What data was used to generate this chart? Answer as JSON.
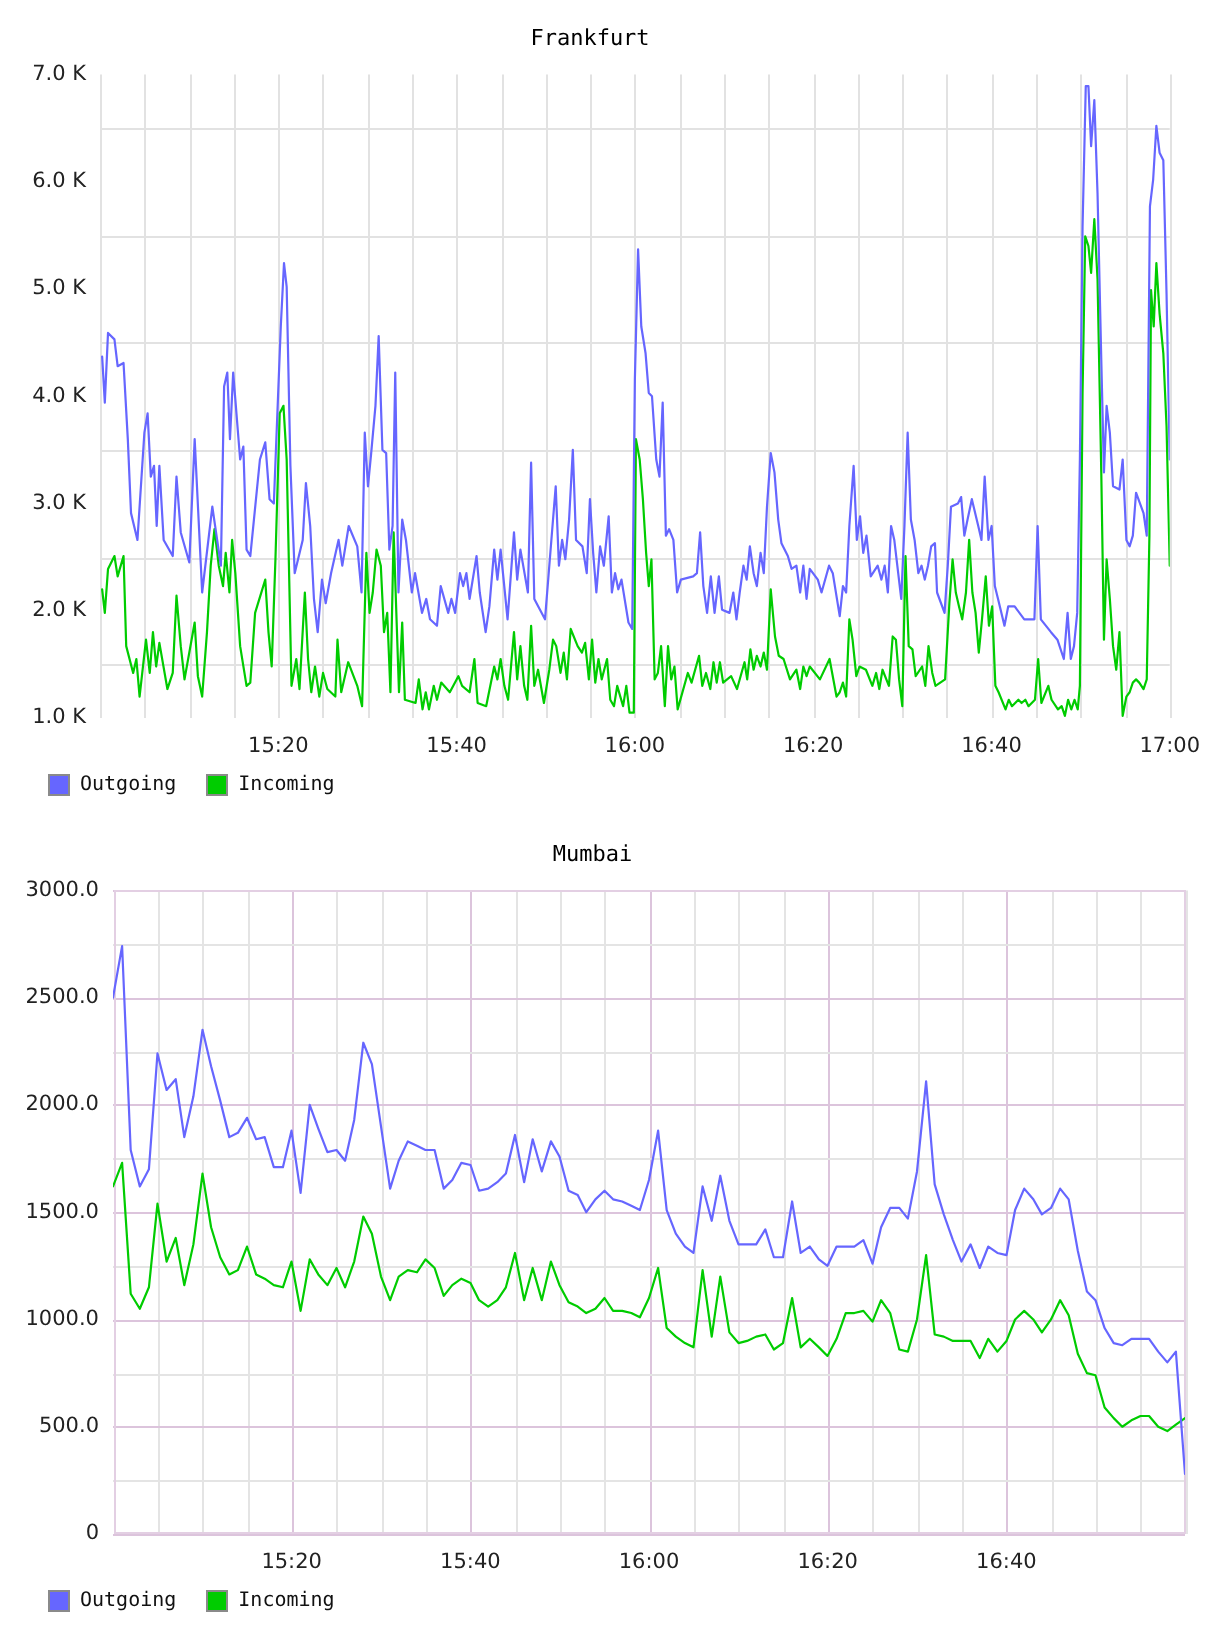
{
  "chart_data": [
    {
      "type": "line",
      "title": "Frankfurt",
      "xlim": [
        15,
        17
      ],
      "xticks": [
        {
          "value": 15,
          "label": null
        },
        {
          "value": 15.0833,
          "label": null
        },
        {
          "value": 15.1667,
          "label": null
        },
        {
          "value": 15.25,
          "label": null
        },
        {
          "value": 15.3333,
          "label": "15:20"
        },
        {
          "value": 15.4167,
          "label": null
        },
        {
          "value": 15.5,
          "label": null
        },
        {
          "value": 15.5833,
          "label": null
        },
        {
          "value": 15.6667,
          "label": "15:40"
        },
        {
          "value": 15.75,
          "label": null
        },
        {
          "value": 15.8333,
          "label": null
        },
        {
          "value": 15.9167,
          "label": null
        },
        {
          "value": 16,
          "label": "16:00"
        },
        {
          "value": 16.0833,
          "label": null
        },
        {
          "value": 16.1667,
          "label": null
        },
        {
          "value": 16.25,
          "label": null
        },
        {
          "value": 16.3333,
          "label": "16:20"
        },
        {
          "value": 16.4167,
          "label": null
        },
        {
          "value": 16.5,
          "label": null
        },
        {
          "value": 16.5833,
          "label": null
        },
        {
          "value": 16.6667,
          "label": "16:40"
        },
        {
          "value": 16.75,
          "label": null
        },
        {
          "value": 16.8333,
          "label": null
        },
        {
          "value": 16.9167,
          "label": null
        },
        {
          "value": 17,
          "label": "17:00"
        }
      ],
      "ylim": [
        1,
        7
      ],
      "yticks": [
        {
          "value": 1,
          "label": "1.0 K"
        },
        {
          "value": 1.5,
          "label": null
        },
        {
          "value": 2,
          "label": "2.0 K"
        },
        {
          "value": 2.5,
          "label": null
        },
        {
          "value": 3,
          "label": "3.0 K"
        },
        {
          "value": 3.5,
          "label": null
        },
        {
          "value": 4,
          "label": "4.0 K"
        },
        {
          "value": 4.5,
          "label": null
        },
        {
          "value": 5,
          "label": "5.0 K"
        },
        {
          "value": 5.5,
          "label": null
        },
        {
          "value": 6,
          "label": "6.0 K"
        },
        {
          "value": 6.5,
          "label": null
        },
        {
          "value": 7,
          "label": "7.0 K"
        }
      ],
      "grid": true,
      "legend": "bottom left",
      "series": [
        {
          "name": "Outgoing",
          "color": "#6666ff",
          "x": [
            15.004,
            15.009,
            15.015,
            15.027,
            15.033,
            15.044,
            15.052,
            15.058,
            15.07,
            15.083,
            15.089,
            15.095,
            15.101,
            15.106,
            15.111,
            15.119,
            15.136,
            15.143,
            15.151,
            15.167,
            15.177,
            15.191,
            15.21,
            15.226,
            15.232,
            15.238,
            15.243,
            15.249,
            15.262,
            15.268,
            15.274,
            15.281,
            15.299,
            15.309,
            15.317,
            15.325,
            15.338,
            15.344,
            15.349,
            15.356,
            15.364,
            15.379,
            15.385,
            15.393,
            15.4,
            15.407,
            15.415,
            15.422,
            15.432,
            15.446,
            15.453,
            15.465,
            15.481,
            15.489,
            15.495,
            15.501,
            15.507,
            15.515,
            15.521,
            15.528,
            15.535,
            15.541,
            15.547,
            15.552,
            15.558,
            15.565,
            15.572,
            15.583,
            15.589,
            15.602,
            15.61,
            15.617,
            15.63,
            15.637,
            15.651,
            15.657,
            15.664,
            15.673,
            15.679,
            15.685,
            15.691,
            15.704,
            15.71,
            15.721,
            15.728,
            15.737,
            15.743,
            15.749,
            15.762,
            15.774,
            15.78,
            15.786,
            15.8,
            15.806,
            15.812,
            15.832,
            15.846,
            15.852,
            15.858,
            15.864,
            15.87,
            15.877,
            15.884,
            15.89,
            15.902,
            15.91,
            15.916,
            15.922,
            15.928,
            15.935,
            15.942,
            15.951,
            15.957,
            15.963,
            15.969,
            15.975,
            15.988,
            15.995,
            16.0,
            16.006,
            16.012,
            16.02,
            16.026,
            16.032,
            16.04,
            16.046,
            16.052,
            16.058,
            16.064,
            16.072,
            16.079,
            16.086,
            16.109,
            16.116,
            16.122,
            16.128,
            16.135,
            16.142,
            16.149,
            16.157,
            16.163,
            16.177,
            16.184,
            16.19,
            16.196,
            16.203,
            16.209,
            16.215,
            16.222,
            16.228,
            16.235,
            16.241,
            16.247,
            16.254,
            16.261,
            16.268,
            16.274,
            16.286,
            16.293,
            16.302,
            16.309,
            16.315,
            16.321,
            16.327,
            16.342,
            16.349,
            16.363,
            16.37,
            16.383,
            16.389,
            16.395,
            16.401,
            16.409,
            16.415,
            16.421,
            16.427,
            16.433,
            16.441,
            16.454,
            16.461,
            16.467,
            16.473,
            16.479,
            16.485,
            16.498,
            16.504,
            16.51,
            16.516,
            16.523,
            16.53,
            16.536,
            16.542,
            16.548,
            16.554,
            16.561,
            16.565,
            16.579,
            16.585,
            16.591,
            16.604,
            16.61,
            16.616,
            16.622,
            16.63,
            16.642,
            16.648,
            16.654,
            16.661,
            16.667,
            16.673,
            16.679,
            16.691,
            16.698,
            16.71,
            16.728,
            16.747,
            16.753,
            16.759,
            16.778,
            16.79,
            16.802,
            16.809,
            16.815,
            16.821,
            16.827,
            16.832,
            16.837,
            16.843,
            16.848,
            16.853,
            16.859,
            16.865,
            16.872,
            16.877,
            16.882,
            16.888,
            16.894,
            16.906,
            16.912,
            16.919,
            16.925,
            16.931,
            16.937,
            16.951,
            16.957,
            16.963,
            16.969,
            16.975,
            16.981,
            16.988,
            16.994,
            17.0
          ],
          "values": [
            4.37,
            3.94,
            4.59,
            4.53,
            4.28,
            4.31,
            3.6,
            2.91,
            2.66,
            3.66,
            3.84,
            3.25,
            3.35,
            2.79,
            3.35,
            2.66,
            2.51,
            3.25,
            2.73,
            2.45,
            3.6,
            2.17,
            2.97,
            2.42,
            4.09,
            4.22,
            3.6,
            4.22,
            3.41,
            3.53,
            2.57,
            2.51,
            3.41,
            3.57,
            3.04,
            3.0,
            4.65,
            5.24,
            5.02,
            3.35,
            2.35,
            2.66,
            3.19,
            2.79,
            2.11,
            1.8,
            2.29,
            2.07,
            2.35,
            2.66,
            2.42,
            2.79,
            2.6,
            2.17,
            3.66,
            3.16,
            3.47,
            3.91,
            4.56,
            3.5,
            3.47,
            2.57,
            2.79,
            4.22,
            2.17,
            2.85,
            2.66,
            2.17,
            2.35,
            1.98,
            2.11,
            1.92,
            1.86,
            2.23,
            1.98,
            2.11,
            1.98,
            2.35,
            2.23,
            2.35,
            2.11,
            2.51,
            2.17,
            1.8,
            2.04,
            2.57,
            2.29,
            2.57,
            1.92,
            2.73,
            2.29,
            2.57,
            2.17,
            3.38,
            2.11,
            1.92,
            2.79,
            3.16,
            2.42,
            2.66,
            2.48,
            2.85,
            3.5,
            2.66,
            2.6,
            2.35,
            3.04,
            2.54,
            2.17,
            2.6,
            2.42,
            2.88,
            2.17,
            2.35,
            2.2,
            2.29,
            1.89,
            1.83,
            4.16,
            5.37,
            4.65,
            4.4,
            4.03,
            4.0,
            3.41,
            3.25,
            3.94,
            2.7,
            2.76,
            2.66,
            2.17,
            2.29,
            2.32,
            2.35,
            2.73,
            2.23,
            1.98,
            2.32,
            1.98,
            2.32,
            2.01,
            1.98,
            2.17,
            1.92,
            2.17,
            2.42,
            2.29,
            2.6,
            2.35,
            2.23,
            2.54,
            2.35,
            2.97,
            3.47,
            3.29,
            2.85,
            2.63,
            2.51,
            2.39,
            2.42,
            2.17,
            2.42,
            2.11,
            2.39,
            2.29,
            2.17,
            2.42,
            2.35,
            1.95,
            2.23,
            2.17,
            2.79,
            3.35,
            2.66,
            2.88,
            2.54,
            2.7,
            2.32,
            2.42,
            2.29,
            2.42,
            2.17,
            2.79,
            2.66,
            2.11,
            2.79,
            3.66,
            2.85,
            2.66,
            2.35,
            2.42,
            2.29,
            2.42,
            2.6,
            2.63,
            2.17,
            1.98,
            2.42,
            2.97,
            3.0,
            3.06,
            2.7,
            2.85,
            3.04,
            2.79,
            2.66,
            3.25,
            2.66,
            2.79,
            2.23,
            2.11,
            1.86,
            2.04,
            2.04,
            1.92,
            1.92,
            2.79,
            1.92,
            1.8,
            1.73,
            1.55,
            1.98,
            1.55,
            1.67,
            1.98,
            3.41,
            5.58,
            6.89,
            6.89,
            6.33,
            6.76,
            5.89,
            4.34,
            3.29,
            3.91,
            3.66,
            3.16,
            3.13,
            3.41,
            2.66,
            2.6,
            2.7,
            3.1,
            2.91,
            2.7,
            5.77,
            6.02,
            6.52,
            6.27,
            6.2,
            4.96,
            3.41
          ]
        },
        {
          "name": "Incoming",
          "color": "#00cc00",
          "x": [
            15.004,
            15.009,
            15.015,
            15.027,
            15.033,
            15.044,
            15.049,
            15.062,
            15.068,
            15.074,
            15.086,
            15.093,
            15.099,
            15.105,
            15.111,
            15.126,
            15.136,
            15.143,
            15.151,
            15.158,
            15.177,
            15.183,
            15.191,
            15.2,
            15.207,
            15.214,
            15.222,
            15.23,
            15.235,
            15.242,
            15.247,
            15.253,
            15.262,
            15.274,
            15.281,
            15.29,
            15.309,
            15.315,
            15.321,
            15.328,
            15.336,
            15.343,
            15.349,
            15.358,
            15.367,
            15.373,
            15.383,
            15.389,
            15.395,
            15.402,
            15.41,
            15.417,
            15.425,
            15.44,
            15.444,
            15.451,
            15.464,
            15.481,
            15.49,
            15.498,
            15.504,
            15.51,
            15.517,
            15.525,
            15.531,
            15.537,
            15.543,
            15.549,
            15.559,
            15.565,
            15.57,
            15.59,
            15.596,
            15.603,
            15.609,
            15.615,
            15.624,
            15.63,
            15.638,
            15.654,
            15.67,
            15.677,
            15.691,
            15.7,
            15.706,
            15.722,
            15.737,
            15.743,
            15.749,
            15.756,
            15.763,
            15.774,
            15.78,
            15.786,
            15.793,
            15.799,
            15.806,
            15.812,
            15.819,
            15.83,
            15.84,
            15.847,
            15.853,
            15.861,
            15.867,
            15.873,
            15.88,
            15.893,
            15.901,
            15.907,
            15.914,
            15.92,
            15.926,
            15.932,
            15.938,
            15.948,
            15.954,
            15.961,
            15.967,
            15.978,
            15.984,
            15.99,
            15.998,
            16.002,
            16.009,
            16.015,
            16.021,
            16.026,
            16.031,
            16.037,
            16.043,
            16.049,
            16.056,
            16.062,
            16.068,
            16.074,
            16.08,
            16.099,
            16.106,
            16.12,
            16.126,
            16.133,
            16.141,
            16.147,
            16.153,
            16.159,
            16.165,
            16.18,
            16.191,
            16.205,
            16.21,
            16.216,
            16.222,
            16.228,
            16.235,
            16.241,
            16.247,
            16.254,
            16.262,
            16.269,
            16.278,
            16.29,
            16.302,
            16.309,
            16.315,
            16.321,
            16.327,
            16.346,
            16.364,
            16.377,
            16.383,
            16.389,
            16.395,
            16.401,
            16.407,
            16.414,
            16.42,
            16.432,
            16.444,
            16.451,
            16.457,
            16.463,
            16.475,
            16.482,
            16.488,
            16.494,
            16.5,
            16.506,
            16.512,
            16.519,
            16.525,
            16.537,
            16.543,
            16.549,
            16.556,
            16.562,
            16.58,
            16.588,
            16.594,
            16.6,
            16.606,
            16.612,
            16.619,
            16.625,
            16.631,
            16.637,
            16.643,
            16.649,
            16.656,
            16.662,
            16.668,
            16.674,
            16.68,
            16.693,
            16.699,
            16.705,
            16.717,
            16.723,
            16.73,
            16.736,
            16.748,
            16.754,
            16.76,
            16.773,
            16.779,
            16.791,
            16.798,
            16.804,
            16.81,
            16.816,
            16.822,
            16.828,
            16.832,
            16.837,
            16.842,
            16.848,
            16.853,
            16.859,
            16.865,
            16.872,
            16.877,
            16.882,
            16.888,
            16.894,
            16.9,
            16.906,
            16.912,
            16.919,
            16.925,
            16.931,
            16.937,
            16.943,
            16.951,
            16.957,
            16.962,
            16.965,
            16.97,
            16.975,
            16.981,
            16.988,
            16.994,
            17.0
          ],
          "values": [
            2.2,
            1.98,
            2.39,
            2.51,
            2.32,
            2.51,
            1.67,
            1.42,
            1.55,
            1.2,
            1.73,
            1.42,
            1.8,
            1.48,
            1.7,
            1.27,
            1.42,
            2.14,
            1.67,
            1.36,
            1.89,
            1.39,
            1.2,
            1.8,
            2.42,
            2.76,
            2.42,
            2.23,
            2.54,
            2.17,
            2.66,
            2.35,
            1.67,
            1.3,
            1.33,
            1.98,
            2.29,
            1.8,
            1.48,
            2.48,
            3.84,
            3.91,
            3.41,
            1.3,
            1.55,
            1.27,
            2.17,
            1.55,
            1.24,
            1.48,
            1.2,
            1.42,
            1.27,
            1.2,
            1.73,
            1.24,
            1.52,
            1.3,
            1.11,
            2.54,
            1.98,
            2.17,
            2.57,
            2.42,
            1.8,
            1.98,
            1.24,
            2.73,
            1.24,
            1.89,
            1.17,
            1.14,
            1.36,
            1.08,
            1.24,
            1.08,
            1.3,
            1.17,
            1.33,
            1.24,
            1.39,
            1.3,
            1.24,
            1.55,
            1.14,
            1.11,
            1.48,
            1.36,
            1.55,
            1.3,
            1.17,
            1.8,
            1.36,
            1.67,
            1.3,
            1.17,
            1.86,
            1.3,
            1.45,
            1.14,
            1.45,
            1.73,
            1.67,
            1.42,
            1.61,
            1.36,
            1.83,
            1.67,
            1.61,
            1.7,
            1.36,
            1.73,
            1.33,
            1.55,
            1.36,
            1.55,
            1.17,
            1.11,
            1.3,
            1.11,
            1.3,
            1.05,
            1.05,
            3.6,
            3.41,
            3.04,
            2.54,
            2.23,
            2.48,
            1.36,
            1.42,
            1.67,
            1.11,
            1.67,
            1.36,
            1.48,
            1.08,
            1.42,
            1.33,
            1.58,
            1.3,
            1.42,
            1.27,
            1.52,
            1.33,
            1.52,
            1.33,
            1.39,
            1.27,
            1.52,
            1.36,
            1.64,
            1.45,
            1.58,
            1.48,
            1.61,
            1.45,
            2.2,
            1.76,
            1.58,
            1.55,
            1.36,
            1.45,
            1.27,
            1.48,
            1.39,
            1.48,
            1.36,
            1.55,
            1.2,
            1.24,
            1.33,
            1.2,
            1.92,
            1.73,
            1.39,
            1.48,
            1.45,
            1.3,
            1.42,
            1.27,
            1.45,
            1.3,
            1.76,
            1.73,
            1.36,
            1.11,
            2.51,
            1.67,
            1.64,
            1.39,
            1.48,
            1.3,
            1.67,
            1.42,
            1.3,
            1.36,
            2.07,
            2.48,
            2.17,
            2.04,
            1.92,
            2.17,
            2.66,
            2.17,
            1.98,
            1.61,
            1.92,
            2.32,
            1.86,
            2.04,
            1.3,
            1.24,
            1.08,
            1.17,
            1.11,
            1.17,
            1.14,
            1.17,
            1.11,
            1.17,
            1.55,
            1.14,
            1.3,
            1.17,
            1.08,
            1.11,
            1.02,
            1.17,
            1.08,
            1.17,
            1.08,
            1.3,
            4.03,
            5.49,
            5.4,
            5.15,
            5.65,
            5.09,
            3.29,
            1.73,
            2.48,
            2.11,
            1.67,
            1.45,
            1.8,
            1.02,
            1.2,
            1.24,
            1.33,
            1.36,
            1.33,
            1.27,
            1.36,
            2.7,
            4.99,
            4.65,
            5.24,
            4.77,
            4.4,
            3.72,
            2.42
          ]
        }
      ]
    },
    {
      "type": "line",
      "title": "Mumbai",
      "xlim": [
        15,
        17
      ],
      "x": [
        15.0,
        15.017,
        15.033,
        15.05,
        15.067,
        15.083,
        15.1,
        15.117,
        15.133,
        15.15,
        15.167,
        15.183,
        15.2,
        15.217,
        15.233,
        15.25,
        15.267,
        15.283,
        15.3,
        15.317,
        15.333,
        15.35,
        15.367,
        15.383,
        15.4,
        15.417,
        15.433,
        15.45,
        15.467,
        15.483,
        15.5,
        15.517,
        15.533,
        15.55,
        15.567,
        15.583,
        15.6,
        15.617,
        15.633,
        15.65,
        15.667,
        15.683,
        15.7,
        15.717,
        15.733,
        15.75,
        15.767,
        15.783,
        15.8,
        15.817,
        15.833,
        15.85,
        15.867,
        15.883,
        15.9,
        15.917,
        15.933,
        15.95,
        15.967,
        15.983,
        16.0,
        16.017,
        16.033,
        16.05,
        16.067,
        16.083,
        16.1,
        16.117,
        16.133,
        16.15,
        16.167,
        16.183,
        16.2,
        16.217,
        16.233,
        16.25,
        16.267,
        16.283,
        16.3,
        16.317,
        16.333,
        16.35,
        16.367,
        16.383,
        16.4,
        16.417,
        16.433,
        16.45,
        16.467,
        16.483,
        16.5,
        16.517,
        16.533,
        16.55,
        16.567,
        16.583,
        16.6,
        16.617,
        16.633,
        16.65,
        16.667,
        16.683,
        16.7,
        16.717,
        16.733,
        16.75,
        16.767,
        16.783,
        16.8,
        16.817,
        16.833,
        16.85,
        16.867,
        16.883,
        16.9,
        16.917,
        16.933,
        16.95,
        16.967,
        16.983,
        17.0
      ],
      "xticks": [
        {
          "value": 15,
          "label": null
        },
        {
          "value": 15.0833,
          "label": null
        },
        {
          "value": 15.1667,
          "label": null
        },
        {
          "value": 15.25,
          "label": null
        },
        {
          "value": 15.3333,
          "label": "15:20"
        },
        {
          "value": 15.4167,
          "label": null
        },
        {
          "value": 15.5,
          "label": null
        },
        {
          "value": 15.5833,
          "label": null
        },
        {
          "value": 15.6667,
          "label": "15:40"
        },
        {
          "value": 15.75,
          "label": null
        },
        {
          "value": 15.8333,
          "label": null
        },
        {
          "value": 15.9167,
          "label": null
        },
        {
          "value": 16,
          "label": "16:00"
        },
        {
          "value": 16.0833,
          "label": null
        },
        {
          "value": 16.1667,
          "label": null
        },
        {
          "value": 16.25,
          "label": null
        },
        {
          "value": 16.3333,
          "label": "16:20"
        },
        {
          "value": 16.4167,
          "label": null
        },
        {
          "value": 16.5,
          "label": null
        },
        {
          "value": 16.5833,
          "label": null
        },
        {
          "value": 16.6667,
          "label": "16:40"
        },
        {
          "value": 16.75,
          "label": null
        },
        {
          "value": 16.8333,
          "label": null
        },
        {
          "value": 16.9167,
          "label": null
        },
        {
          "value": 17,
          "label": null
        }
      ],
      "ylim": [
        0,
        3000
      ],
      "yticks": [
        0,
        {
          "value": 250,
          "label": null
        },
        {
          "value": 500,
          "label": "500.0"
        },
        {
          "value": 750,
          "label": null
        },
        {
          "value": 1000,
          "label": "1000.0"
        },
        {
          "value": 1250,
          "label": null
        },
        {
          "value": 1500,
          "label": "1500.0"
        },
        {
          "value": 1750,
          "label": null
        },
        {
          "value": 2000,
          "label": "2000.0"
        },
        {
          "value": 2250,
          "label": null
        },
        {
          "value": 2500,
          "label": "2500.0"
        },
        {
          "value": 2750,
          "label": null
        },
        {
          "value": 3000,
          "label": "3000.0"
        }
      ],
      "grid": true,
      "legend": "bottom left",
      "series": [
        {
          "name": "Outgoing",
          "color": "#6666ff",
          "values": [
            2500,
            2740,
            1790,
            1620,
            1700,
            2240,
            2070,
            2120,
            1850,
            2040,
            2350,
            2180,
            2020,
            1850,
            1870,
            1940,
            1840,
            1850,
            1710,
            1710,
            1880,
            1590,
            2000,
            1890,
            1780,
            1790,
            1740,
            1930,
            2290,
            2190,
            1900,
            1610,
            1740,
            1830,
            1810,
            1790,
            1790,
            1610,
            1650,
            1730,
            1720,
            1600,
            1610,
            1640,
            1680,
            1860,
            1640,
            1840,
            1690,
            1830,
            1760,
            1600,
            1580,
            1500,
            1560,
            1600,
            1560,
            1550,
            1530,
            1510,
            1650,
            1880,
            1510,
            1400,
            1340,
            1310,
            1620,
            1460,
            1670,
            1460,
            1350,
            1350,
            1350,
            1420,
            1290,
            1290,
            1550,
            1310,
            1340,
            1280,
            1250,
            1340,
            1340,
            1340,
            1370,
            1260,
            1430,
            1520,
            1520,
            1470,
            1690,
            2110,
            1630,
            1490,
            1370,
            1270,
            1350,
            1240,
            1340,
            1310,
            1300,
            1510,
            1610,
            1560,
            1490,
            1520,
            1610,
            1560,
            1320,
            1130,
            1090,
            960,
            890,
            880,
            910,
            910,
            910,
            850,
            800,
            850,
            280
          ]
        },
        {
          "name": "Incoming",
          "color": "#00cc00",
          "values": [
            1620,
            1730,
            1120,
            1050,
            1150,
            1540,
            1270,
            1380,
            1160,
            1350,
            1680,
            1430,
            1290,
            1210,
            1230,
            1340,
            1210,
            1190,
            1160,
            1150,
            1270,
            1040,
            1280,
            1210,
            1160,
            1240,
            1150,
            1270,
            1480,
            1400,
            1200,
            1090,
            1200,
            1230,
            1220,
            1280,
            1240,
            1110,
            1160,
            1190,
            1170,
            1090,
            1060,
            1090,
            1150,
            1310,
            1090,
            1240,
            1090,
            1270,
            1160,
            1080,
            1060,
            1030,
            1050,
            1100,
            1040,
            1040,
            1030,
            1010,
            1100,
            1240,
            960,
            920,
            890,
            870,
            1230,
            920,
            1200,
            940,
            890,
            900,
            920,
            930,
            860,
            890,
            1100,
            870,
            910,
            870,
            830,
            910,
            1030,
            1030,
            1040,
            990,
            1090,
            1030,
            860,
            850,
            1000,
            1300,
            930,
            920,
            900,
            900,
            900,
            820,
            910,
            850,
            900,
            1000,
            1040,
            1000,
            940,
            1000,
            1090,
            1020,
            840,
            750,
            740,
            590,
            540,
            500,
            530,
            550,
            550,
            500,
            480,
            510,
            540
          ]
        }
      ]
    }
  ]
}
